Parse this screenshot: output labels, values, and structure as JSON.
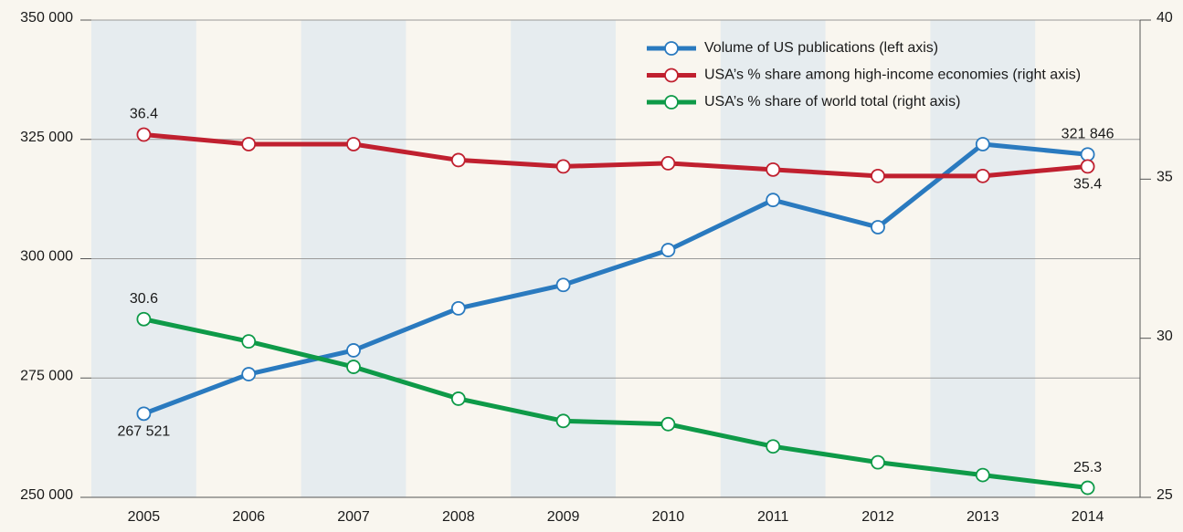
{
  "chart_data": {
    "type": "line",
    "categories": [
      "2005",
      "2006",
      "2007",
      "2008",
      "2009",
      "2010",
      "2011",
      "2012",
      "2013",
      "2014"
    ],
    "ylim": [
      250000,
      350000
    ],
    "yticks": [
      {
        "value": 250000,
        "label": "250 000"
      },
      {
        "value": 275000,
        "label": "275 000"
      },
      {
        "value": 300000,
        "label": "300 000"
      },
      {
        "value": 325000,
        "label": "325 000"
      },
      {
        "value": 350000,
        "label": "350 000"
      }
    ],
    "y2lim": [
      25,
      40
    ],
    "y2ticks": [
      25,
      30,
      35,
      40
    ],
    "grid": true,
    "legend": "top-right",
    "series": [
      {
        "name": "Volume of US publications (left axis)",
        "color": "#2a7abf",
        "values": [
          267521,
          275800,
          280800,
          289600,
          294500,
          301800,
          312300,
          306600,
          324000,
          321846
        ],
        "value_labels": [
          "267 521",
          null,
          null,
          null,
          null,
          null,
          null,
          null,
          null,
          "321 846"
        ]
      },
      {
        "name": "USA’s % share among high-income economies (right axis)",
        "color": "#c0202f",
        "axis": "y2",
        "values": [
          36.4,
          36.1,
          36.1,
          35.6,
          35.4,
          35.5,
          35.3,
          35.1,
          35.1,
          35.4
        ],
        "value_labels": [
          "36.4",
          null,
          null,
          null,
          null,
          null,
          null,
          null,
          null,
          "35.4"
        ]
      },
      {
        "name": "USA’s % share of world total (right axis)",
        "color": "#0e9a48",
        "axis": "y2",
        "values": [
          30.6,
          29.9,
          29.1,
          28.1,
          27.4,
          27.3,
          26.6,
          26.1,
          25.7,
          25.3
        ],
        "value_labels": [
          "30.6",
          null,
          null,
          null,
          null,
          null,
          null,
          null,
          null,
          "25.3"
        ]
      }
    ]
  }
}
